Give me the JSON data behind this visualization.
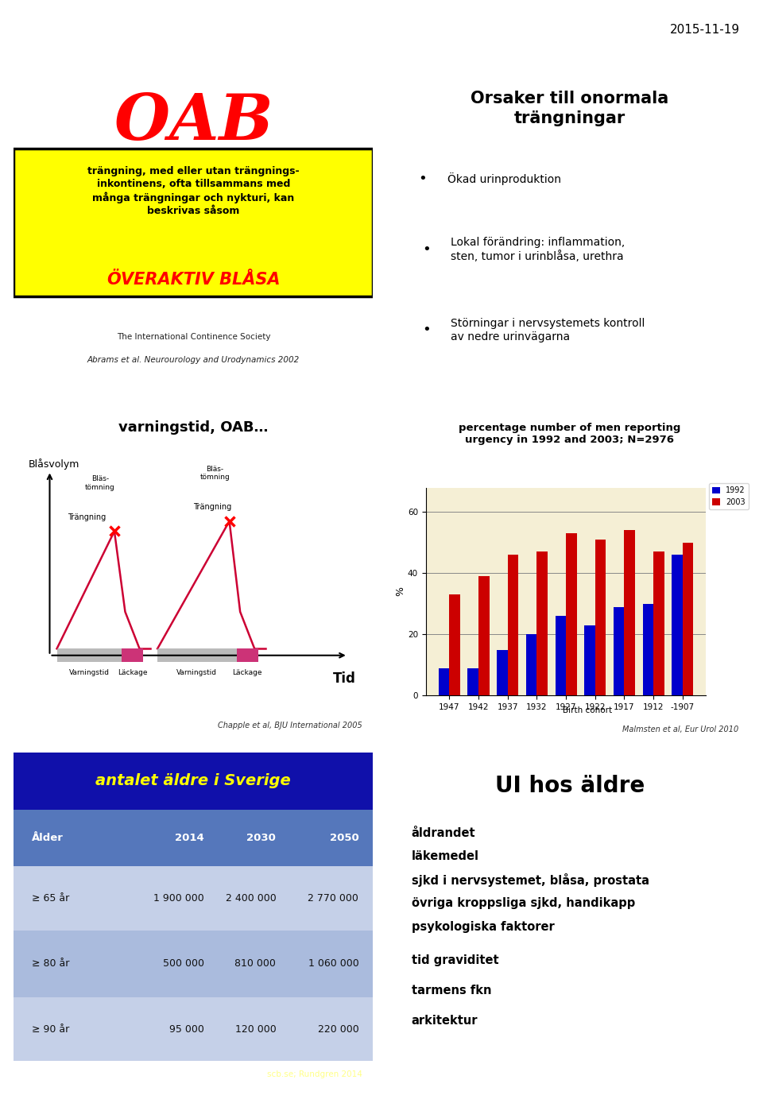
{
  "bg_color": "#f5efd5",
  "slide_bg": "#ffffff",
  "date_text": "2015-11-19",
  "panel1_title": "OAB",
  "panel1_subtitle": "trängning, med eller utan trängnings-\ninkontinens, ofta tillsammans med\nmånga trängningar och nykturi, kan\nbeskrivas såsom",
  "panel1_highlight": "ÖVERAKTIV BLÅSA",
  "panel1_source1": "The International Continence Society",
  "panel1_source2": "Abrams et al. Neurourology and Urodynamics 2002",
  "panel2_title": "Orsaker till onormala\nträngningar",
  "panel2_bullets": [
    "Ökad urinproduktion",
    "Lokal förändring: inflammation,\nsten, tumor i urinblåsa, urethra",
    "Störningar i nervsystemets kontroll\nav nedre urinvägarna"
  ],
  "panel3_title": "varningstid, OAB…",
  "panel3_ylabel": "Blåsvolym",
  "panel3_source": "Chapple et al, BJU International 2005",
  "panel4_title": "percentage number of men reporting\nurgency in 1992 and 2003; N=2976",
  "panel4_ylabel": "%",
  "panel4_xlabel": "Birth cohort",
  "panel4_categories": [
    "1947",
    "1942",
    "1937",
    "1932",
    "1927",
    "1922",
    "1917",
    "1912",
    "-1907"
  ],
  "panel4_values_1992": [
    9,
    9,
    15,
    20,
    26,
    23,
    29,
    30,
    46
  ],
  "panel4_values_2003": [
    33,
    39,
    46,
    47,
    53,
    51,
    54,
    47,
    50
  ],
  "panel4_color_1992": "#0000cc",
  "panel4_color_2003": "#cc0000",
  "panel4_source": "Malmsten et al, Eur Urol 2010",
  "panel5_title": "antalet äldre i Sverige",
  "panel5_header": [
    "Ålder",
    "2014",
    "2030",
    "2050"
  ],
  "panel5_rows": [
    [
      "≥ 65 år",
      "1 900 000",
      "2 400 000",
      "2 770 000"
    ],
    [
      "≥ 80 år",
      "500 000",
      "810 000",
      "1 060 000"
    ],
    [
      "≥ 90 år",
      "95 000",
      "120 000",
      "220 000"
    ]
  ],
  "panel5_source": "scb.se; Rundgren 2014",
  "panel5_title_color": "#ffff00",
  "panel5_bg_color": "#1010aa",
  "panel5_header_bg": "#5577bb",
  "panel5_row_bg_odd": "#c5d0e8",
  "panel5_row_bg_even": "#aabbdd",
  "panel6_title": "UI hos äldre",
  "panel6_items": [
    "åldrandet",
    "läkemedel",
    "sjkd i nervsystemet, blåsa, prostata",
    "övriga kroppsliga sjkd, handikapp",
    "psykologiska faktorer",
    "tid graviditet",
    "tarmens fkn",
    "arkitektur"
  ]
}
